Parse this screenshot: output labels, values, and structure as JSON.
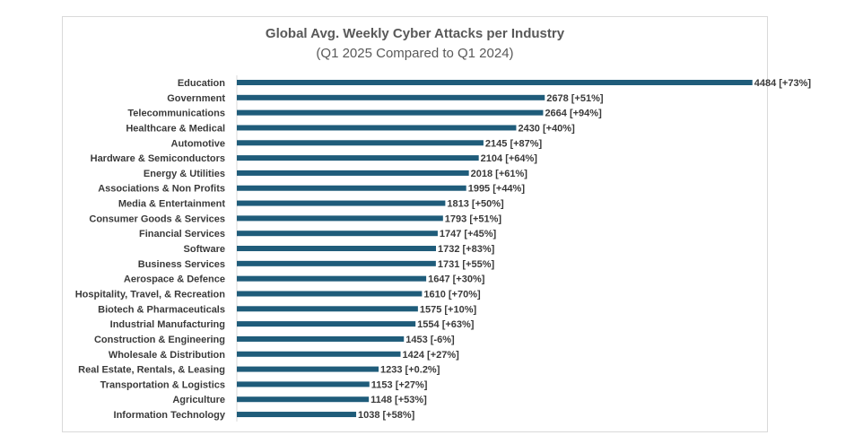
{
  "chart_data": {
    "type": "bar",
    "orientation": "horizontal",
    "title": "Global Avg. Weekly Cyber Attacks per Industry",
    "subtitle": "(Q1 2025 Compared to Q1 2024)",
    "xlim": [
      0,
      4650
    ],
    "bar_color": "#1f5c7a",
    "categories": [
      "Education",
      "Government",
      "Telecommunications",
      "Healthcare & Medical",
      "Automotive",
      "Hardware & Semiconductors",
      "Energy & Utilities",
      "Associations & Non Profits",
      "Media & Entertainment",
      "Consumer Goods & Services",
      "Financial Services",
      "Software",
      "Business Services",
      "Aerospace & Defence",
      "Hospitality, Travel, & Recreation",
      "Biotech & Pharmaceuticals",
      "Industrial Manufacturing",
      "Construction & Engineering",
      "Wholesale & Distribution",
      "Real Estate, Rentals, & Leasing",
      "Transportation & Logistics",
      "Agriculture",
      "Information Technology"
    ],
    "values": [
      4484,
      2678,
      2664,
      2430,
      2145,
      2104,
      2018,
      1995,
      1813,
      1793,
      1747,
      1732,
      1731,
      1647,
      1610,
      1575,
      1554,
      1453,
      1424,
      1233,
      1153,
      1148,
      1038
    ],
    "data_labels": [
      "4484 [+73%]",
      "2678 [+51%]",
      "2664 [+94%]",
      "2430 [+40%]",
      "2145 [+87%]",
      "2104 [+64%]",
      "2018 [+61%]",
      "1995 [+44%]",
      "1813 [+50%]",
      "1793 [+51%]",
      "1747 [+45%]",
      "1732 [+83%]",
      "1731 [+55%]",
      "1647 [+30%]",
      "1610 [+70%]",
      "1575 [+10%]",
      "1554 [+63%]",
      "1453 [-6%]",
      "1424 [+27%]",
      "1233 [+0.2%]",
      "1153 [+27%]",
      "1148 [+53%]",
      "1038 [+58%]"
    ]
  }
}
